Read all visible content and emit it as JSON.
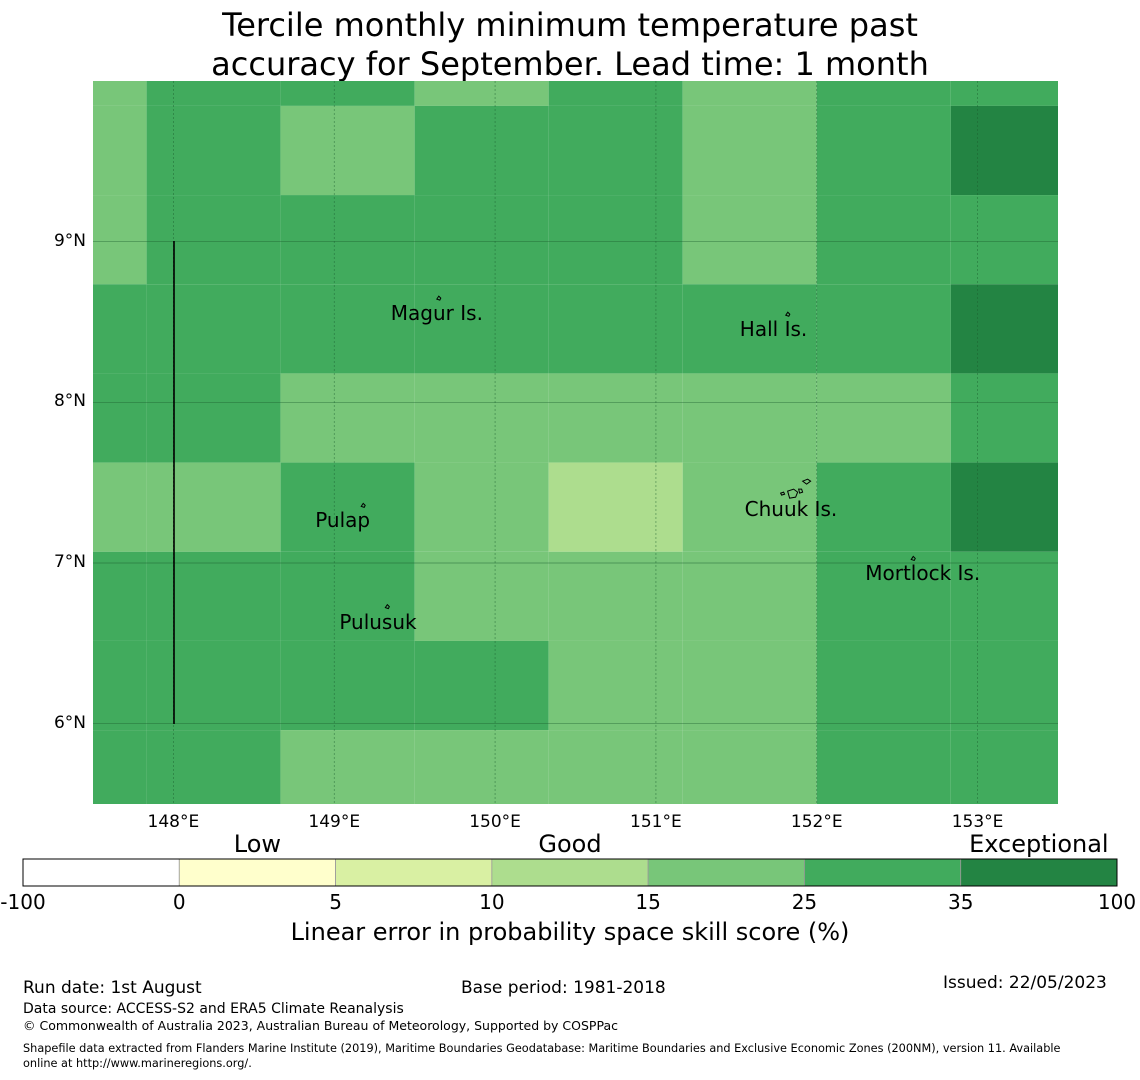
{
  "title": {
    "line1": "Tercile monthly minimum temperature past",
    "line2": "accuracy for September. Lead time: 1 month"
  },
  "map": {
    "lon_range": [
      147.5,
      153.5
    ],
    "lat_range": [
      5.5,
      10.0
    ],
    "grid_step_deg": 0.8333,
    "lat_ticks": [
      {
        "value": 9,
        "label": "9°N"
      },
      {
        "value": 8,
        "label": "8°N"
      },
      {
        "value": 7,
        "label": "7°N"
      },
      {
        "value": 6,
        "label": "6°N"
      }
    ],
    "lon_ticks": [
      {
        "value": 148,
        "label": "148°E"
      },
      {
        "value": 149,
        "label": "149°E"
      },
      {
        "value": 150,
        "label": "150°E"
      },
      {
        "value": 151,
        "label": "151°E"
      },
      {
        "value": 152,
        "label": "152°E"
      },
      {
        "value": 153,
        "label": "153°E"
      }
    ],
    "cell_categories": [
      [
        4,
        5,
        5,
        4,
        5,
        4,
        5,
        5
      ],
      [
        4,
        5,
        4,
        5,
        5,
        4,
        5,
        6
      ],
      [
        4,
        5,
        5,
        5,
        5,
        4,
        5,
        5
      ],
      [
        5,
        5,
        5,
        5,
        5,
        5,
        5,
        6
      ],
      [
        5,
        5,
        4,
        4,
        4,
        4,
        4,
        5
      ],
      [
        4,
        4,
        5,
        4,
        3,
        4,
        5,
        6
      ],
      [
        5,
        5,
        5,
        4,
        4,
        4,
        5,
        5
      ],
      [
        5,
        5,
        5,
        5,
        4,
        4,
        5,
        5
      ],
      [
        5,
        5,
        4,
        4,
        4,
        4,
        5,
        5
      ]
    ],
    "islands": [
      {
        "name": "Magur Is.",
        "lon": 149.65,
        "lat": 8.58
      },
      {
        "name": "Hall Is.",
        "lon": 151.82,
        "lat": 8.48
      },
      {
        "name": "Pulap",
        "lon": 149.18,
        "lat": 7.29
      },
      {
        "name": "Chuuk Is.",
        "lon": 151.85,
        "lat": 7.36
      },
      {
        "name": "Mortlock Is.",
        "lon": 152.6,
        "lat": 6.96
      },
      {
        "name": "Pulusuk",
        "lon": 149.33,
        "lat": 6.66
      }
    ]
  },
  "legend": {
    "categories": [
      {
        "label": "Low",
        "tick_index": 1
      },
      {
        "label": "Good",
        "tick_index": 3
      },
      {
        "label": "Exceptional",
        "tick_index": 6
      }
    ],
    "bins": [
      {
        "from": -100,
        "to": 0,
        "color": "#ffffff"
      },
      {
        "from": 0,
        "to": 5,
        "color": "#ffffcc"
      },
      {
        "from": 5,
        "to": 10,
        "color": "#d9f0a3"
      },
      {
        "from": 10,
        "to": 15,
        "color": "#addd8e"
      },
      {
        "from": 15,
        "to": 25,
        "color": "#78c679"
      },
      {
        "from": 25,
        "to": 35,
        "color": "#41ab5d"
      },
      {
        "from": 35,
        "to": 100,
        "color": "#238443"
      }
    ],
    "ticks": [
      "-100",
      "0",
      "5",
      "10",
      "15",
      "25",
      "35",
      "100"
    ],
    "label": "Linear error in probability space skill score (%)"
  },
  "footer": {
    "run_date": "Run date: 1st August",
    "base_period": "Base period: 1981-2018",
    "issued": "Issued: 22/05/2023",
    "data_source": "Data source: ACCESS-S2 and ERA5 Climate Reanalysis",
    "copyright": "© Commonwealth of Australia 2023, Australian Bureau of Meteorology, Supported by COSPPac",
    "shapefile_line1": "Shapefile data extracted from Flanders Marine Institute (2019), Maritime Boundaries Geodatabase: Maritime Boundaries and Exclusive Economic Zones (200NM), version 11. Available",
    "shapefile_line2": "online at http://www.marineregions.org/."
  }
}
